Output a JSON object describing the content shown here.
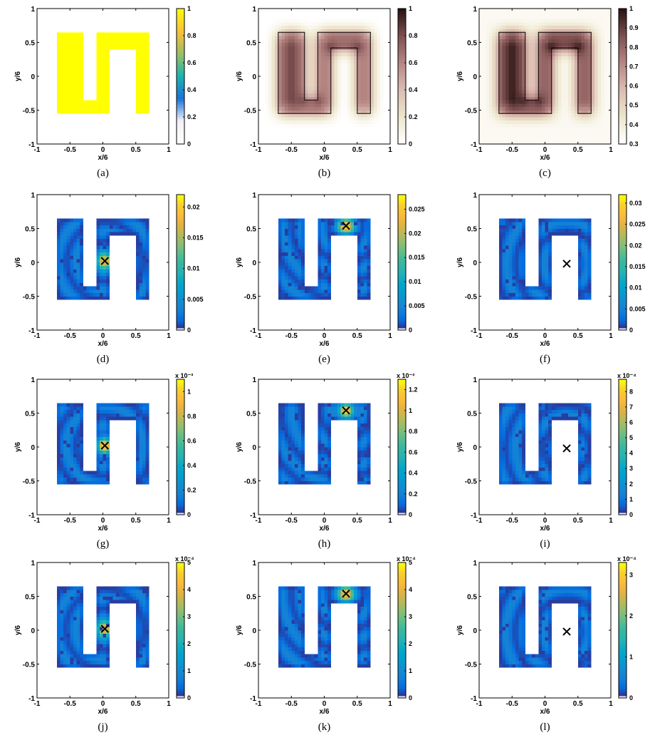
{
  "chart_data": [
    {
      "id": "a",
      "type": "heatmap",
      "caption": "(a)",
      "xlabel": "x/6",
      "ylabel": "y/6",
      "xlim": [
        -1,
        1
      ],
      "ylim": [
        -1,
        1
      ],
      "xticks": [
        "-1",
        "-0.5",
        "0",
        "0.5",
        "1"
      ],
      "yticks": [
        "-1",
        "-0.5",
        "0",
        "0.5",
        "1"
      ],
      "colormap": "white-to-yellow",
      "colorbar": {
        "min": 0,
        "max": 1,
        "ticks": [
          "0",
          "0.2",
          "0.4",
          "0.6",
          "0.8",
          "1"
        ],
        "exponent": ""
      },
      "geometry_outline": false,
      "field": "indicator",
      "source": null
    },
    {
      "id": "b",
      "type": "heatmap",
      "caption": "(b)",
      "xlabel": "x/6",
      "ylabel": "y/6",
      "xlim": [
        -1,
        1
      ],
      "ylim": [
        -1,
        1
      ],
      "xticks": [
        "-1",
        "-0.5",
        "0",
        "0.5",
        "1"
      ],
      "yticks": [
        "-1",
        "-0.5",
        "0",
        "0.5",
        "1"
      ],
      "colormap": "white-to-brown",
      "colorbar": {
        "min": 0,
        "max": 1,
        "ticks": [
          "0",
          "0.2",
          "0.4",
          "0.6",
          "0.8",
          "1"
        ],
        "exponent": ""
      },
      "geometry_outline": true,
      "field": "blur",
      "source": null
    },
    {
      "id": "c",
      "type": "heatmap",
      "caption": "(c)",
      "xlabel": "x/6",
      "ylabel": "y/6",
      "xlim": [
        -1,
        1
      ],
      "ylim": [
        -1,
        1
      ],
      "xticks": [
        "-1",
        "-0.5",
        "0",
        "0.5",
        "1"
      ],
      "yticks": [
        "-1",
        "-0.5",
        "0",
        "0.5",
        "1"
      ],
      "colormap": "white-to-brown",
      "colorbar": {
        "min": 0.3,
        "max": 1,
        "ticks": [
          "0.3",
          "0.4",
          "0.5",
          "0.6",
          "0.7",
          "0.8",
          "0.9",
          "1"
        ],
        "exponent": ""
      },
      "geometry_outline": true,
      "field": "blur",
      "source": null
    },
    {
      "id": "d",
      "type": "heatmap",
      "caption": "(d)",
      "xlabel": "x/6",
      "ylabel": "y/6",
      "xlim": [
        -1,
        1
      ],
      "ylim": [
        -1,
        1
      ],
      "xticks": [
        "-1",
        "-0.5",
        "0",
        "0.5",
        "1"
      ],
      "yticks": [
        "-1",
        "-0.5",
        "0",
        "0.5",
        "1"
      ],
      "colormap": "parula",
      "colorbar": {
        "min": 0,
        "max": 0.022,
        "ticks": [
          "0",
          "0.005",
          "0.01",
          "0.015",
          "0.02"
        ],
        "exponent": ""
      },
      "geometry_outline": false,
      "field": "response",
      "source": [
        0.03,
        0.02
      ]
    },
    {
      "id": "e",
      "type": "heatmap",
      "caption": "(e)",
      "xlabel": "x/6",
      "ylabel": "y/6",
      "xlim": [
        -1,
        1
      ],
      "ylim": [
        -1,
        1
      ],
      "xticks": [
        "-1",
        "-0.5",
        "0",
        "0.5",
        "1"
      ],
      "yticks": [
        "-1",
        "-0.5",
        "0",
        "0.5",
        "1"
      ],
      "colormap": "parula",
      "colorbar": {
        "min": 0,
        "max": 0.028,
        "ticks": [
          "0",
          "0.005",
          "0.01",
          "0.015",
          "0.02",
          "0.025"
        ],
        "exponent": ""
      },
      "geometry_outline": false,
      "field": "response",
      "source": [
        0.33,
        0.54
      ]
    },
    {
      "id": "f",
      "type": "heatmap",
      "caption": "(f)",
      "xlabel": "x/6",
      "ylabel": "y/6",
      "xlim": [
        -1,
        1
      ],
      "ylim": [
        -1,
        1
      ],
      "xticks": [
        "-1",
        "-0.5",
        "0",
        "0.5",
        "1"
      ],
      "yticks": [
        "-1",
        "-0.5",
        "0",
        "0.5",
        "1"
      ],
      "colormap": "parula",
      "colorbar": {
        "min": 0,
        "max": 0.032,
        "ticks": [
          "0",
          "0.005",
          "0.01",
          "0.015",
          "0.02",
          "0.025",
          "0.03"
        ],
        "exponent": ""
      },
      "geometry_outline": false,
      "field": "response",
      "source": [
        0.33,
        -0.02
      ]
    },
    {
      "id": "g",
      "type": "heatmap",
      "caption": "(g)",
      "xlabel": "x/6",
      "ylabel": "y/6",
      "xlim": [
        -1,
        1
      ],
      "ylim": [
        -1,
        1
      ],
      "xticks": [
        "-1",
        "-0.5",
        "0",
        "0.5",
        "1"
      ],
      "yticks": [
        "-1",
        "-0.5",
        "0",
        "0.5",
        "1"
      ],
      "colormap": "parula",
      "colorbar": {
        "min": 0,
        "max": 1.1,
        "ticks": [
          "0",
          "0.2",
          "0.4",
          "0.6",
          "0.8",
          "1"
        ],
        "exponent": "x 10⁻³"
      },
      "geometry_outline": false,
      "field": "response",
      "source": [
        0.03,
        0.02
      ]
    },
    {
      "id": "h",
      "type": "heatmap",
      "caption": "(h)",
      "xlabel": "x/6",
      "ylabel": "y/6",
      "xlim": [
        -1,
        1
      ],
      "ylim": [
        -1,
        1
      ],
      "xticks": [
        "-1",
        "-0.5",
        "0",
        "0.5",
        "1"
      ],
      "yticks": [
        "-1",
        "-0.5",
        "0",
        "0.5",
        "1"
      ],
      "colormap": "parula",
      "colorbar": {
        "min": 0,
        "max": 1.3,
        "ticks": [
          "0",
          "0.2",
          "0.4",
          "0.6",
          "0.8",
          "1",
          "1.2"
        ],
        "exponent": "x 10⁻³"
      },
      "geometry_outline": false,
      "field": "response",
      "source": [
        0.33,
        0.54
      ]
    },
    {
      "id": "i",
      "type": "heatmap",
      "caption": "(i)",
      "xlabel": "x/6",
      "ylabel": "y/6",
      "xlim": [
        -1,
        1
      ],
      "ylim": [
        -1,
        1
      ],
      "xticks": [
        "-1",
        "-0.5",
        "0",
        "0.5",
        "1"
      ],
      "yticks": [
        "-1",
        "-0.5",
        "0",
        "0.5",
        "1"
      ],
      "colormap": "parula",
      "colorbar": {
        "min": 0,
        "max": 8.8,
        "ticks": [
          "0",
          "1",
          "2",
          "3",
          "4",
          "5",
          "6",
          "7",
          "8"
        ],
        "exponent": "x 10⁻⁴"
      },
      "geometry_outline": false,
      "field": "response",
      "source": [
        0.33,
        -0.02
      ]
    },
    {
      "id": "j",
      "type": "heatmap",
      "caption": "(j)",
      "xlabel": "x/6",
      "ylabel": "y/6",
      "xlim": [
        -1,
        1
      ],
      "ylim": [
        -1,
        1
      ],
      "xticks": [
        "-1",
        "-0.5",
        "0",
        "0.5",
        "1"
      ],
      "yticks": [
        "-1",
        "-0.5",
        "0",
        "0.5",
        "1"
      ],
      "colormap": "parula",
      "colorbar": {
        "min": 0,
        "max": 5,
        "ticks": [
          "0",
          "1",
          "2",
          "3",
          "4",
          "5"
        ],
        "exponent": "x 10⁻⁴"
      },
      "geometry_outline": false,
      "field": "response",
      "source": [
        0.03,
        0.02
      ]
    },
    {
      "id": "k",
      "type": "heatmap",
      "caption": "(k)",
      "xlabel": "x/6",
      "ylabel": "y/6",
      "xlim": [
        -1,
        1
      ],
      "ylim": [
        -1,
        1
      ],
      "xticks": [
        "-1",
        "-0.5",
        "0",
        "0.5",
        "1"
      ],
      "yticks": [
        "-1",
        "-0.5",
        "0",
        "0.5",
        "1"
      ],
      "colormap": "parula",
      "colorbar": {
        "min": 0,
        "max": 5,
        "ticks": [
          "0",
          "1",
          "2",
          "3",
          "4",
          "5"
        ],
        "exponent": "x 10⁻⁴"
      },
      "geometry_outline": false,
      "field": "response",
      "source": [
        0.33,
        0.54
      ]
    },
    {
      "id": "l",
      "type": "heatmap",
      "caption": "(l)",
      "xlabel": "x/6",
      "ylabel": "y/6",
      "xlim": [
        -1,
        1
      ],
      "ylim": [
        -1,
        1
      ],
      "xticks": [
        "-1",
        "-0.5",
        "0",
        "0.5",
        "1"
      ],
      "yticks": [
        "-1",
        "-0.5",
        "0",
        "0.5",
        "1"
      ],
      "colormap": "parula",
      "colorbar": {
        "min": 0,
        "max": 3.3,
        "ticks": [
          "0",
          "1",
          "2",
          "3"
        ],
        "exponent": "x 10⁻⁴"
      },
      "geometry_outline": false,
      "field": "response",
      "source": [
        0.33,
        -0.02
      ]
    }
  ],
  "shape_region": {
    "description_units": "x/6, y/6",
    "outer": [
      [
        -0.7,
        -0.55
      ],
      [
        0.7,
        0.65
      ]
    ],
    "holes": [
      [
        [
          -0.3,
          -0.35
        ],
        [
          -0.1,
          0.65
        ]
      ],
      [
        [
          0.1,
          -0.55
        ],
        [
          0.5,
          0.42
        ]
      ]
    ]
  },
  "colors": {
    "background": "#ffffff",
    "marker": "#000000",
    "yellow": "#ffff00",
    "brown_dark": "#2a1414",
    "parula_low": "#3e26a8",
    "parula_high": "#f9fb0e"
  }
}
